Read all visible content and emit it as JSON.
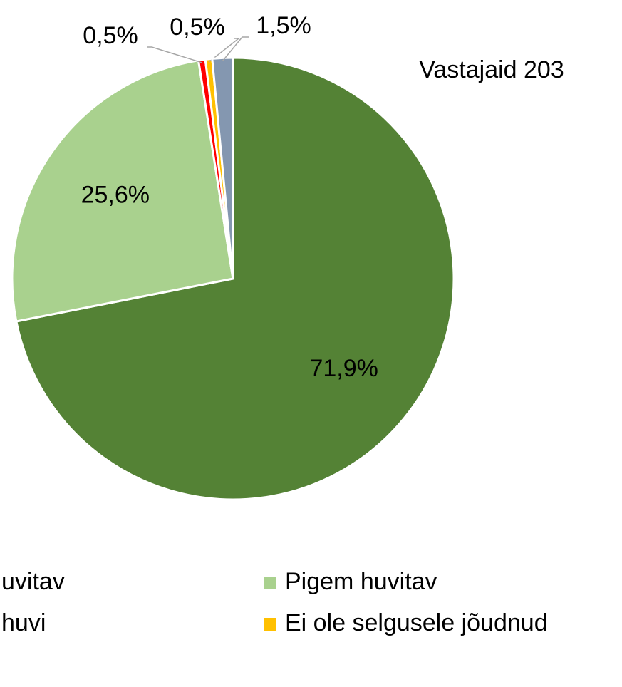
{
  "chart_data": {
    "type": "pie",
    "subtitle": "Vastajaid 203",
    "series": [
      {
        "name": "uvitav",
        "color": "#548235",
        "values": [
          71.9
        ],
        "value_labels": [
          "71,9%"
        ]
      },
      {
        "name": "Pigem huvitav",
        "color": "#a9d18e",
        "values": [
          25.6
        ],
        "value_labels": [
          "25,6%"
        ]
      },
      {
        "name": "huvi",
        "color": "#ff0000",
        "values": [
          0.5
        ],
        "value_labels": [
          "0,5%"
        ]
      },
      {
        "name": "Ei ole selgusele jõudnud",
        "color": "#ffc000",
        "values": [
          0.5
        ],
        "value_labels": [
          "0,5%"
        ]
      },
      {
        "name": null,
        "color": "#8497b0",
        "values": [
          1.5
        ],
        "value_labels": [
          "1,5%"
        ]
      }
    ]
  }
}
